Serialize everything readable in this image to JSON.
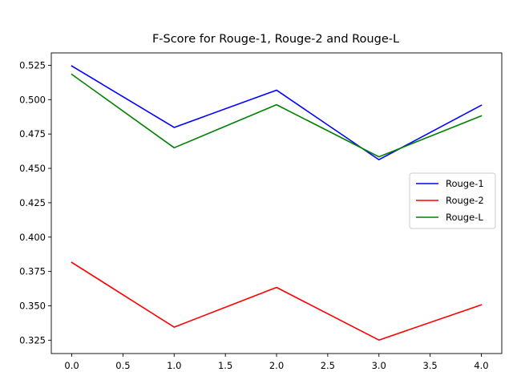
{
  "chart_data": {
    "type": "line",
    "title": "F-Score for Rouge-1, Rouge-2 and Rouge-L",
    "xlabel": "",
    "ylabel": "",
    "x": [
      0,
      1,
      2,
      3,
      4
    ],
    "series": [
      {
        "name": "Rouge-1",
        "color": "#0000ff",
        "values": [
          0.5245,
          0.4798,
          0.5069,
          0.4563,
          0.4959
        ]
      },
      {
        "name": "Rouge-2",
        "color": "#ff0000",
        "values": [
          0.3816,
          0.3345,
          0.3634,
          0.3251,
          0.3507
        ]
      },
      {
        "name": "Rouge-L",
        "color": "#008000",
        "values": [
          0.5184,
          0.465,
          0.4963,
          0.4584,
          0.4882
        ]
      }
    ],
    "xlim": [
      -0.2,
      4.2
    ],
    "ylim": [
      0.3153,
      0.534
    ],
    "xticks": [
      "0.0",
      "0.5",
      "1.0",
      "1.5",
      "2.0",
      "2.5",
      "3.0",
      "3.5",
      "4.0"
    ],
    "yticks": [
      "0.325",
      "0.350",
      "0.375",
      "0.400",
      "0.425",
      "0.450",
      "0.475",
      "0.500",
      "0.525"
    ],
    "grid": false,
    "legend": "center-right"
  }
}
